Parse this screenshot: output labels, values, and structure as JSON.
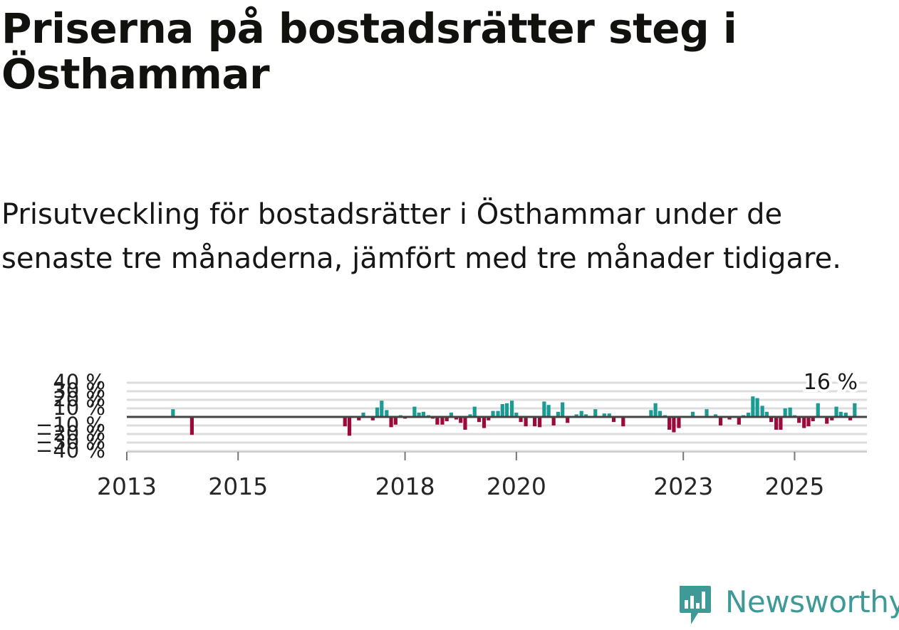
{
  "title": "Priserna på bostadsrätter steg i Östhammar",
  "subtitle": "Prisutveckling för bostadsrätter i Östhammar under de senaste tre månaderna, jämfört med tre månader tidigare.",
  "brand": {
    "name": "Newsworthy",
    "color": "#3d9a96"
  },
  "colors": {
    "positive": "#1a9c94",
    "negative": "#9b0a3c",
    "zero_line": "#444444",
    "grid": "#dddddd"
  },
  "chart_data": {
    "type": "bar",
    "title": "Priserna på bostadsrätter steg i Östhammar",
    "xlabel": "",
    "ylabel": "",
    "ylim": [
      -40,
      40
    ],
    "xlim": [
      2013.0,
      2026.3
    ],
    "y_ticks": [
      -40,
      -30,
      -20,
      -10,
      10,
      20,
      30,
      40
    ],
    "y_tick_labels": [
      "−40 %",
      "−30 %",
      "−20 %",
      "−10 %",
      "10 %",
      "20 %",
      "30 %",
      "40 %"
    ],
    "x_ticks": [
      2013,
      2015,
      2018,
      2020,
      2023,
      2025
    ],
    "x_tick_labels": [
      "2013",
      "2015",
      "2018",
      "2020",
      "2023",
      "2025"
    ],
    "annotation": {
      "text": "16 %",
      "x": 2026.0,
      "value": 16
    },
    "x": [
      2013.83,
      2014.17,
      2016.92,
      2017.0,
      2017.17,
      2017.25,
      2017.42,
      2017.5,
      2017.58,
      2017.67,
      2017.75,
      2017.83,
      2017.92,
      2018.0,
      2018.08,
      2018.17,
      2018.25,
      2018.33,
      2018.42,
      2018.5,
      2018.58,
      2018.67,
      2018.75,
      2018.83,
      2018.92,
      2019.0,
      2019.08,
      2019.17,
      2019.25,
      2019.33,
      2019.42,
      2019.5,
      2019.58,
      2019.67,
      2019.75,
      2019.83,
      2019.92,
      2020.0,
      2020.08,
      2020.17,
      2020.33,
      2020.42,
      2020.5,
      2020.58,
      2020.67,
      2020.75,
      2020.83,
      2020.92,
      2021.08,
      2021.17,
      2021.25,
      2021.42,
      2021.58,
      2021.67,
      2021.75,
      2021.92,
      2022.42,
      2022.5,
      2022.58,
      2022.67,
      2022.75,
      2022.83,
      2022.92,
      2023.17,
      2023.42,
      2023.58,
      2023.67,
      2023.83,
      2024.0,
      2024.08,
      2024.17,
      2024.25,
      2024.33,
      2024.42,
      2024.5,
      2024.58,
      2024.67,
      2024.75,
      2024.83,
      2024.92,
      2025.0,
      2025.08,
      2025.17,
      2025.25,
      2025.33,
      2025.42,
      2025.58,
      2025.67,
      2025.75,
      2025.83,
      2025.92,
      2026.0,
      2026.08
    ],
    "values": [
      9,
      -21,
      -11,
      -22,
      -4,
      5,
      -4,
      11,
      19,
      8,
      -12,
      -9,
      2,
      -2,
      -1,
      12,
      5,
      6,
      2,
      -2,
      -9,
      -9,
      -5,
      5,
      -3,
      -7,
      -15,
      3,
      12,
      -6,
      -13,
      -4,
      7,
      7,
      15,
      16,
      19,
      5,
      -6,
      -11,
      -11,
      -12,
      18,
      14,
      -10,
      6,
      17,
      -7,
      3,
      7,
      3,
      9,
      4,
      4,
      -6,
      -11,
      8,
      16,
      7,
      2,
      -15,
      -18,
      -13,
      6,
      9,
      3,
      -10,
      -3,
      -9,
      2,
      5,
      24,
      22,
      13,
      6,
      -6,
      -15,
      -15,
      10,
      11,
      2,
      -7,
      -13,
      -11,
      -5,
      16,
      -8,
      -4,
      12,
      6,
      5,
      -4,
      16
    ]
  }
}
